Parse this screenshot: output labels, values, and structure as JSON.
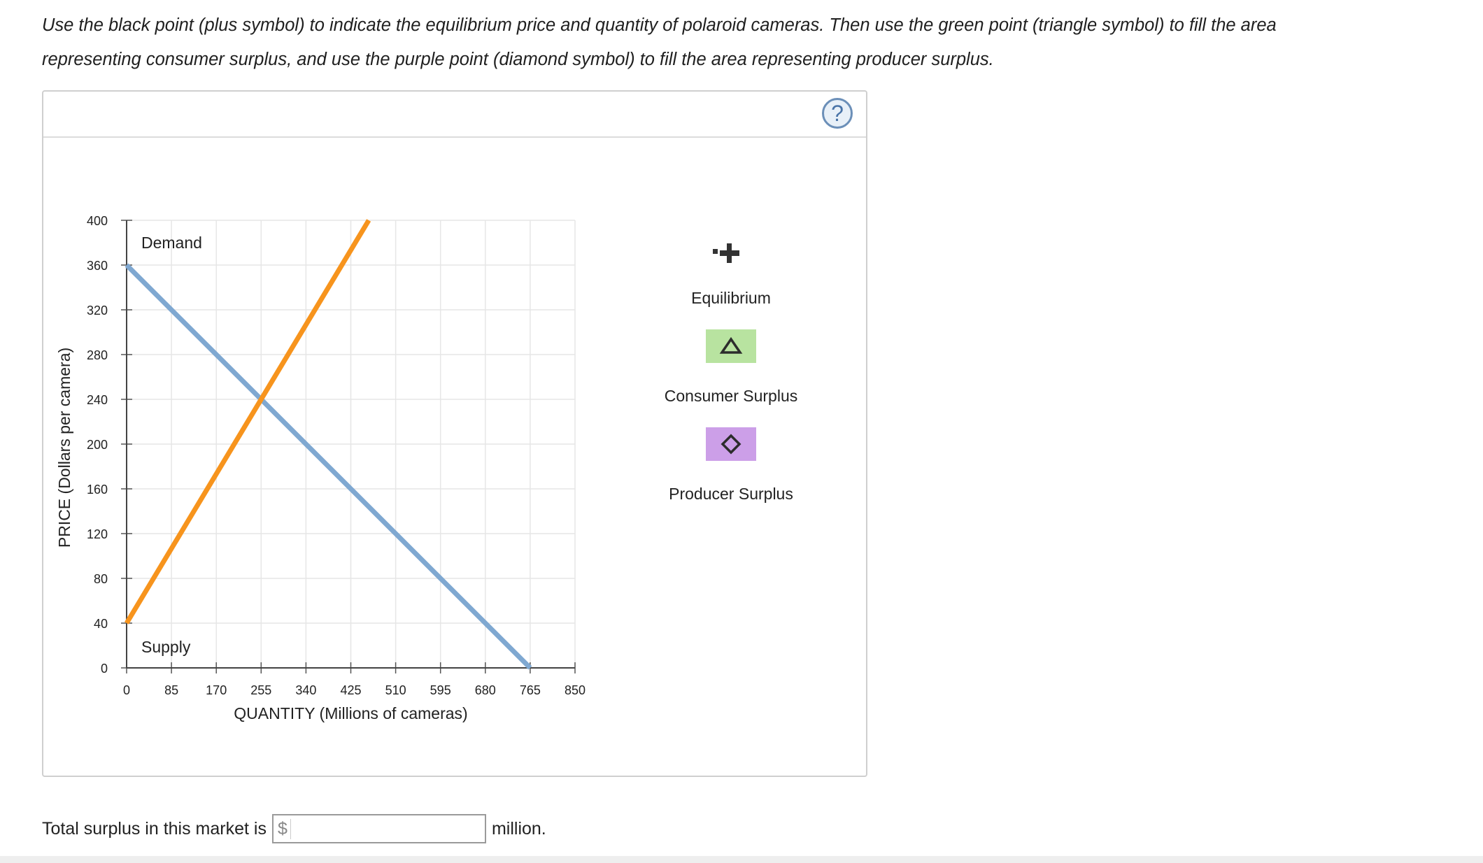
{
  "instructions": "Use the black point (plus symbol) to indicate the equilibrium price and quantity of polaroid cameras. Then use the green point (triangle symbol) to fill the area representing consumer surplus, and use the purple point (diamond symbol) to fill the area representing producer surplus.",
  "help_label": "?",
  "chart_data": {
    "type": "line",
    "title": "",
    "xlabel": "QUANTITY (Millions of cameras)",
    "ylabel": "PRICE (Dollars per camera)",
    "xlim": [
      0,
      850
    ],
    "ylim": [
      0,
      400
    ],
    "x_ticks": [
      0,
      85,
      170,
      255,
      340,
      425,
      510,
      595,
      680,
      765,
      850
    ],
    "y_ticks": [
      0,
      40,
      80,
      120,
      160,
      200,
      240,
      280,
      320,
      360,
      400
    ],
    "grid": true,
    "series": [
      {
        "name": "Demand",
        "x": [
          0,
          765
        ],
        "y": [
          360,
          0
        ],
        "color": "#7fa8d1"
      },
      {
        "name": "Supply",
        "x": [
          0,
          459
        ],
        "y": [
          40,
          400
        ],
        "color": "#f7941d"
      }
    ]
  },
  "legend": {
    "equilibrium": {
      "label": "Equilibrium",
      "icon": "plus-icon",
      "color": "#333333"
    },
    "consumer_surplus": {
      "label": "Consumer Surplus",
      "icon": "triangle-icon",
      "color": "#b8e3a0"
    },
    "producer_surplus": {
      "label": "Producer Surplus",
      "icon": "diamond-icon",
      "color": "#cc9fe8"
    }
  },
  "footer": {
    "prefix": "Total surplus in this market is",
    "currency": "$",
    "input_value": "",
    "suffix": "million."
  }
}
